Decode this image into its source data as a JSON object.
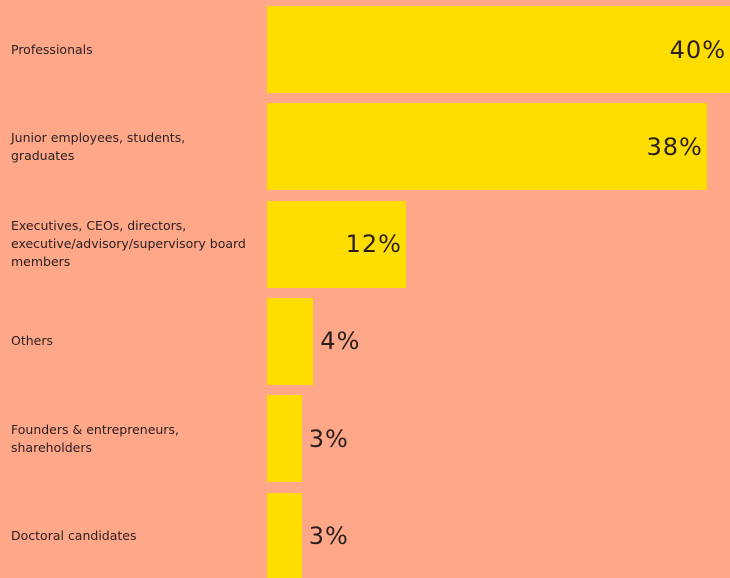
{
  "chart_data": {
    "type": "bar",
    "orientation": "horizontal",
    "categories": [
      "Professionals",
      "Junior employees, students, graduates",
      "Executives, CEOs, directors, executive/advisory/supervisory board members",
      "Others",
      "Founders & entrepreneurs, shareholders",
      "Doctoral candidates"
    ],
    "values": [
      40,
      38,
      12,
      4,
      3,
      3
    ],
    "value_labels": [
      "40%",
      "38%",
      "12%",
      "4%",
      "3%",
      "3%"
    ],
    "color": "#ffdd00"
  }
}
